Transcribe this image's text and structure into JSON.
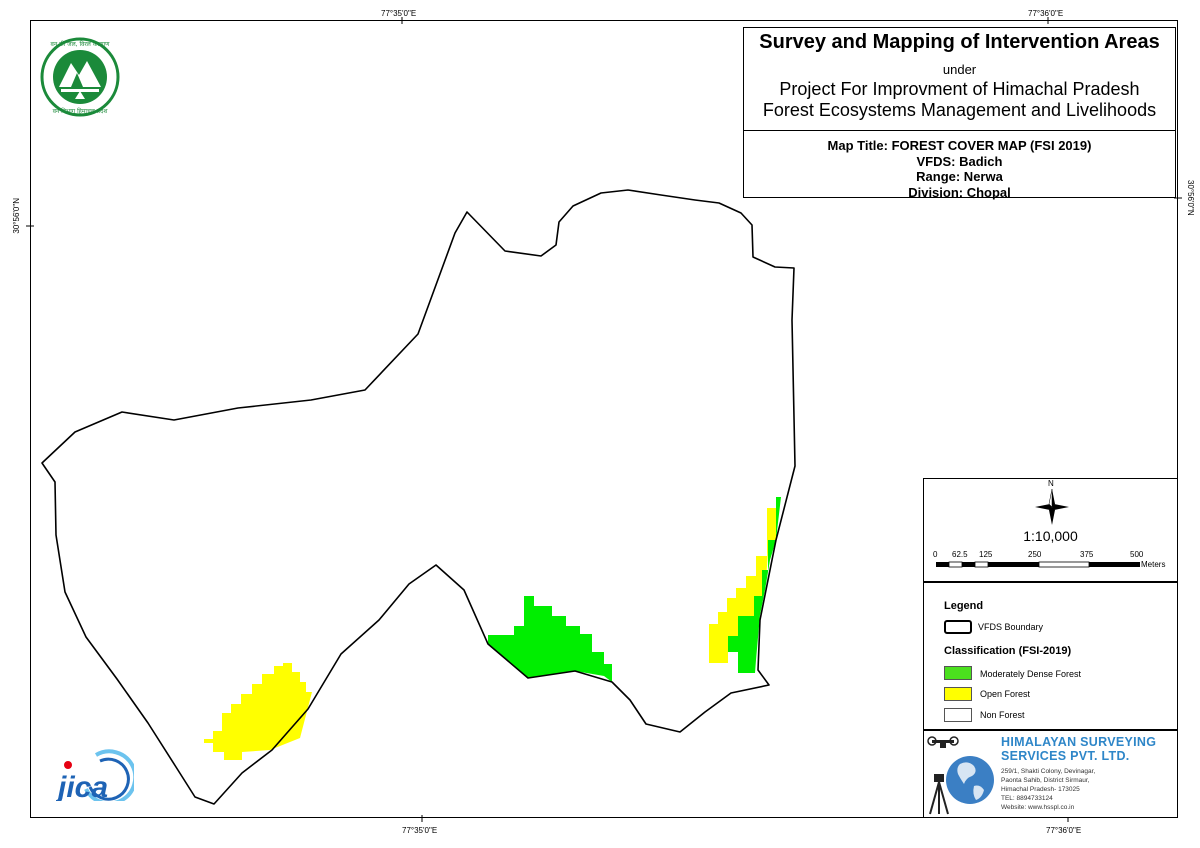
{
  "coordinates": {
    "top_left": "77°35'0\"E",
    "top_right": "77°36'0\"E",
    "bottom_left": "77°35'0\"E",
    "bottom_right": "77°36'0\"E",
    "left": "30°56'0\"N",
    "right": "30°56'0\"N"
  },
  "title_block": {
    "main": "Survey and Mapping of Intervention Areas",
    "under": "under",
    "project_line1": "Project For Improvment of Himachal Pradesh",
    "project_line2": "Forest Ecosystems Management and Livelihoods",
    "map_title": "Map Title: FOREST COVER MAP (FSI 2019)",
    "vfds": "VFDS: Badich",
    "range": "Range: Nerwa",
    "division": "Division: Chopal"
  },
  "scale": {
    "north": "N",
    "ratio": "1:10,000",
    "ticks": [
      "0",
      "62.5",
      "125",
      "250",
      "375",
      "500"
    ],
    "unit": "Meters"
  },
  "legend": {
    "title": "Legend",
    "boundary_label": "VFDS Boundary",
    "classification_title": "Classification (FSI-2019)",
    "items": [
      {
        "label": "Moderately Dense Forest",
        "color": "#00ee00"
      },
      {
        "label": "Open Forest",
        "color": "#ffff00"
      },
      {
        "label": "Non Forest",
        "color": "#ffffff"
      }
    ]
  },
  "company": {
    "name_line1": "HIMALAYAN SURVEYING",
    "name_line2": "SERVICES PVT. LTD.",
    "address": [
      "259/1, Shakti Colony, Devinagar,",
      "Paonta Sahib, District Sirmaur,",
      "Himachal Pradesh- 173025",
      "TEL: 8894733124",
      "Website: www.hsspl.co.in"
    ]
  },
  "logos": {
    "forest_dept_text": "वन की जल, विरल कल्याण",
    "forest_dept_text2": "वन विभाग हिमाचल प्रदेश",
    "jica": "JICA"
  },
  "colors": {
    "moderately_dense": "#00ee00",
    "open_forest": "#ffff00",
    "boundary": "#000000",
    "company_blue": "#2e86c8"
  }
}
